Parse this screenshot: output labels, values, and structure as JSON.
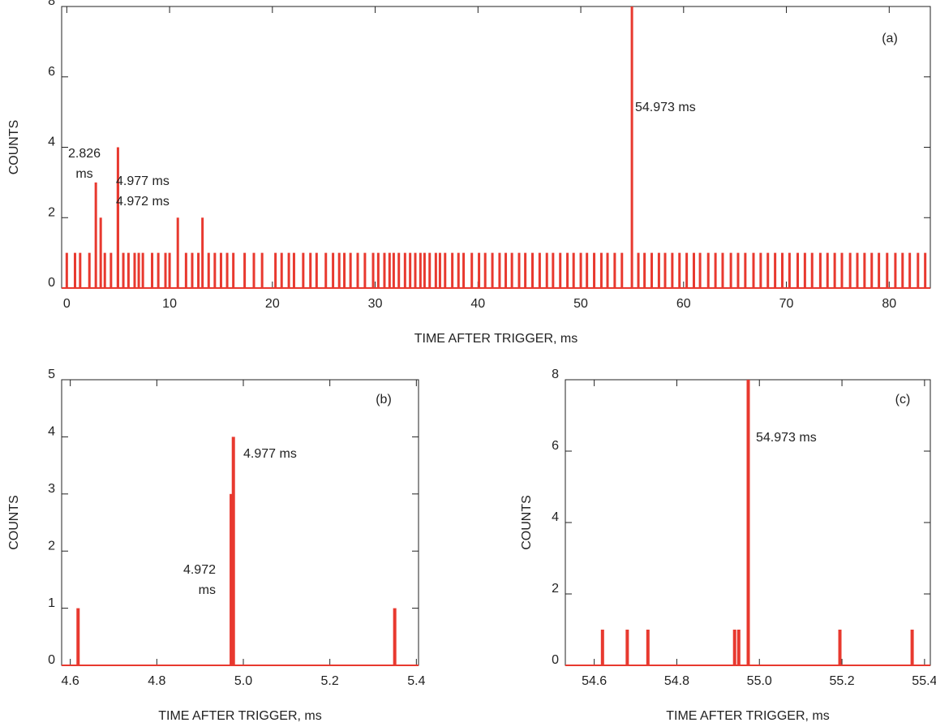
{
  "chart_data": [
    {
      "type": "bar",
      "color": "#e8392f",
      "x_label": "TIME AFTER TRIGGER, ms",
      "y_label": "COUNTS",
      "annotations": [
        "(a)",
        "2.826",
        "ms",
        "4.977 ms",
        "4.972 ms",
        "54.973 ms"
      ],
      "xlim": [
        -0.5,
        84
      ],
      "ylim": [
        0,
        8
      ],
      "xticks": [
        0,
        10,
        20,
        30,
        40,
        50,
        60,
        70,
        80
      ],
      "yticks": [
        0,
        2,
        4,
        6,
        8
      ],
      "x": [
        2.826,
        3.3,
        4.972,
        4.977,
        10.8,
        13.2,
        54.973,
        0.0,
        0.8,
        1.3,
        2.2,
        3.7,
        4.3,
        5.5,
        6.0,
        6.6,
        7.0,
        7.4,
        8.3,
        8.9,
        9.6,
        10.0,
        11.6,
        12.2,
        12.8,
        13.8,
        14.4,
        15.0,
        15.6,
        16.2,
        17.3,
        18.2,
        19.0,
        20.3,
        20.9,
        21.6,
        22.1,
        23.0,
        23.7,
        24.3,
        25.2,
        25.9,
        26.5,
        27.0,
        27.6,
        28.3,
        29.0,
        29.8,
        30.3,
        30.9,
        31.4,
        31.8,
        32.3,
        32.9,
        33.4,
        33.9,
        34.4,
        34.8,
        35.3,
        35.9,
        36.3,
        36.8,
        37.5,
        38.1,
        38.6,
        39.4,
        40.1,
        40.7,
        41.4,
        42.1,
        42.7,
        43.3,
        44.0,
        44.6,
        45.3,
        46.0,
        46.7,
        47.3,
        48.0,
        48.7,
        49.3,
        50.0,
        50.6,
        51.3,
        52.0,
        52.6,
        53.3,
        54.0,
        55.6,
        56.2,
        56.9,
        57.6,
        58.2,
        58.9,
        59.6,
        60.3,
        61.0,
        61.6,
        62.4,
        63.1,
        63.8,
        64.6,
        65.3,
        66.0,
        66.8,
        67.5,
        68.2,
        68.9,
        69.6,
        70.3,
        71.1,
        71.8,
        72.5,
        73.3,
        74.0,
        74.7,
        75.4,
        76.2,
        76.9,
        77.6,
        78.3,
        79.0,
        79.8,
        80.6,
        81.3,
        82.0,
        82.8,
        83.5
      ],
      "values": [
        3,
        2,
        3,
        4,
        2,
        2,
        8,
        1,
        1,
        1,
        1,
        1,
        1,
        1,
        1,
        1,
        1,
        1,
        1,
        1,
        1,
        1,
        1,
        1,
        1,
        1,
        1,
        1,
        1,
        1,
        1,
        1,
        1,
        1,
        1,
        1,
        1,
        1,
        1,
        1,
        1,
        1,
        1,
        1,
        1,
        1,
        1,
        1,
        1,
        1,
        1,
        1,
        1,
        1,
        1,
        1,
        1,
        1,
        1,
        1,
        1,
        1,
        1,
        1,
        1,
        1,
        1,
        1,
        1,
        1,
        1,
        1,
        1,
        1,
        1,
        1,
        1,
        1,
        1,
        1,
        1,
        1,
        1,
        1,
        1,
        1,
        1,
        1,
        1,
        1,
        1,
        1,
        1,
        1,
        1,
        1,
        1,
        1,
        1,
        1,
        1,
        1,
        1,
        1,
        1,
        1,
        1,
        1,
        1,
        1,
        1,
        1,
        1,
        1,
        1,
        1,
        1,
        1,
        1,
        1,
        1,
        1,
        1,
        1,
        1,
        1,
        1,
        1
      ]
    },
    {
      "type": "bar",
      "color": "#e8392f",
      "x_label": "TIME AFTER TRIGGER, ms",
      "y_label": "COUNTS",
      "annotations": [
        "(b)",
        "4.977 ms",
        "4.972",
        "ms"
      ],
      "xlim": [
        4.58,
        5.405
      ],
      "ylim": [
        0,
        5
      ],
      "xticks": [
        4.6,
        4.8,
        {
          "value": 5.0,
          "label": "5.0"
        },
        5.2,
        5.4
      ],
      "yticks": [
        0,
        1,
        2,
        3,
        4,
        5
      ],
      "x": [
        4.618,
        4.972,
        4.977,
        5.35
      ],
      "values": [
        1,
        3,
        4,
        1
      ]
    },
    {
      "type": "bar",
      "color": "#e8392f",
      "x_label": "TIME AFTER TRIGGER, ms",
      "y_label": "COUNTS",
      "annotations": [
        "(c)",
        "54.973 ms"
      ],
      "xlim": [
        54.53,
        55.414
      ],
      "ylim": [
        0,
        8
      ],
      "xticks": [
        54.6,
        54.8,
        {
          "value": 55,
          "label": "55.0"
        },
        55.2,
        55.4
      ],
      "yticks": [
        0,
        2,
        4,
        6,
        8
      ],
      "x": [
        54.62,
        54.68,
        54.73,
        54.94,
        54.95,
        54.973,
        55.195,
        55.37
      ],
      "values": [
        1,
        1,
        1,
        1,
        1,
        8,
        1,
        1
      ]
    }
  ]
}
